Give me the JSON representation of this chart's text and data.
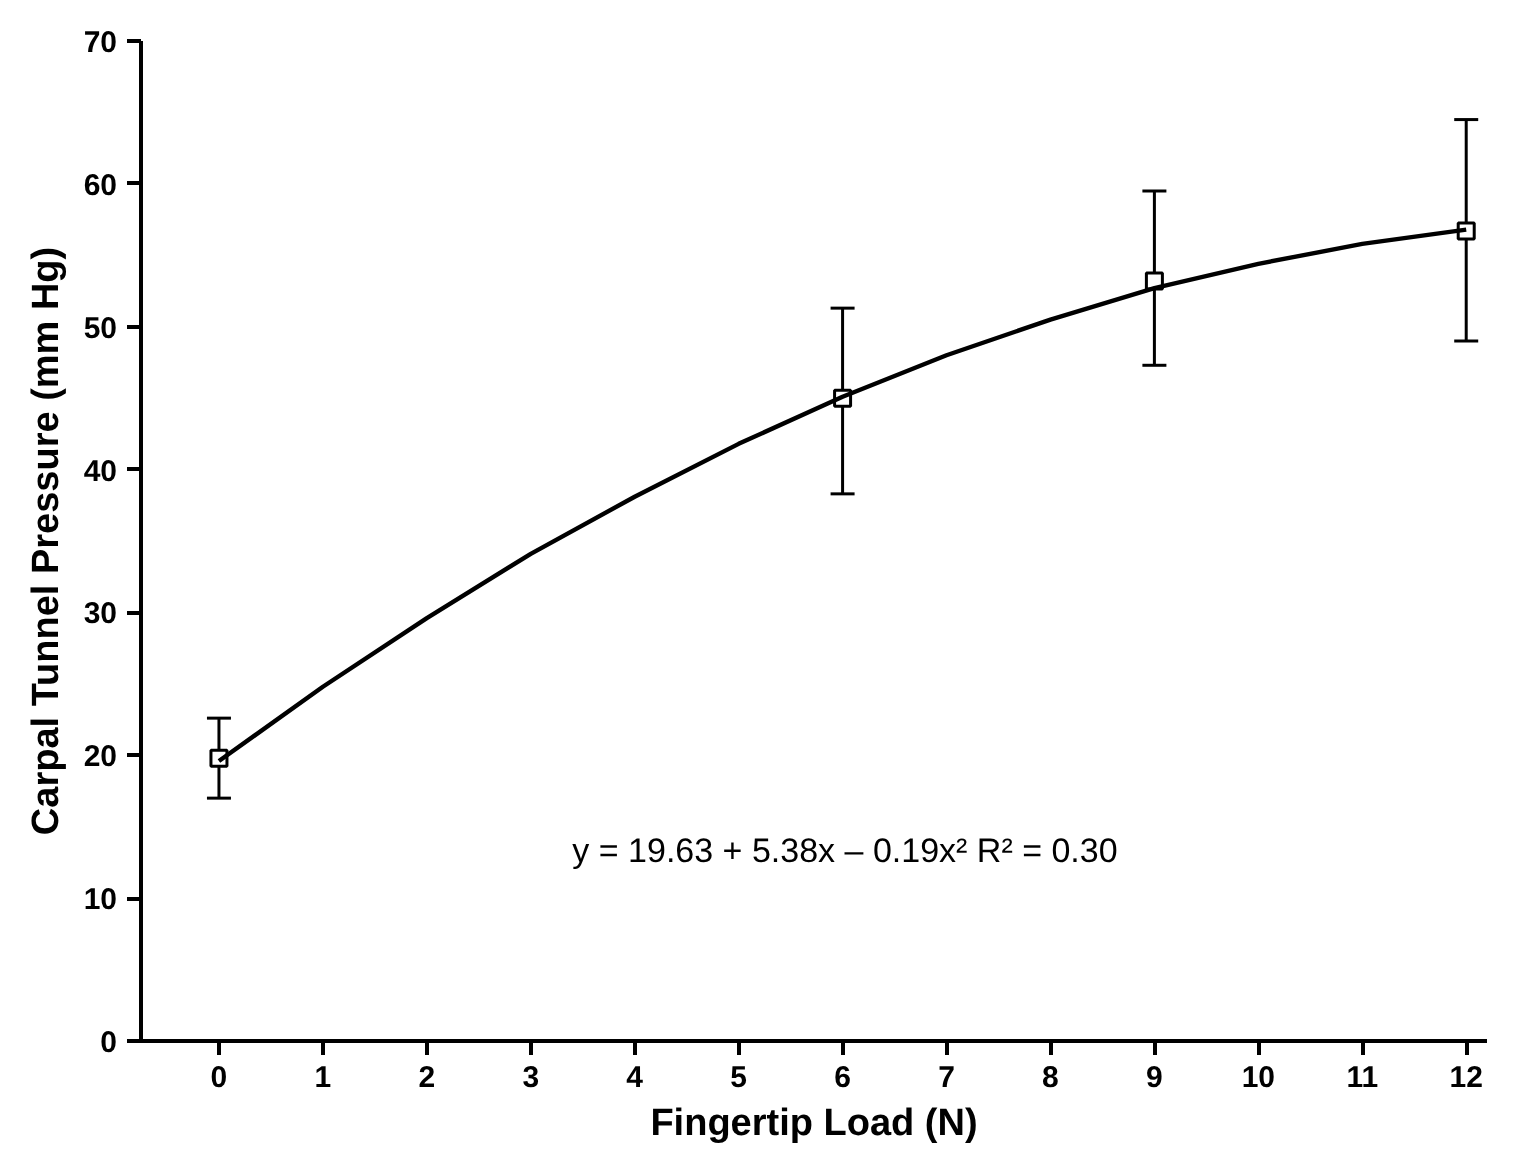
{
  "chart_data": {
    "type": "line",
    "xlabel": "Fingertip Load (N)",
    "ylabel": "Carpal Tunnel Pressure (mm Hg)",
    "xlim": [
      -0.75,
      12.2
    ],
    "ylim": [
      0,
      70
    ],
    "xticks": [
      0,
      1,
      2,
      3,
      4,
      5,
      6,
      7,
      8,
      9,
      10,
      11,
      12
    ],
    "yticks": [
      0,
      10,
      20,
      30,
      40,
      50,
      60,
      70
    ],
    "grid": false,
    "series": [
      {
        "type": "scatter",
        "marker": "square",
        "color": "#000000",
        "x": [
          0,
          6,
          9,
          12
        ],
        "values": [
          19.8,
          45,
          53.2,
          56.7
        ],
        "errors": [
          [
            17,
            22.6
          ],
          [
            38.3,
            51.3
          ],
          [
            47.3,
            59.5
          ],
          [
            49,
            64.5
          ]
        ]
      },
      {
        "color": "#000000",
        "x": [
          0,
          1,
          2,
          3,
          4,
          5,
          6,
          7,
          8,
          9,
          10,
          11,
          12
        ],
        "values": [
          19.6,
          24.8,
          29.6,
          34.1,
          38.1,
          41.8,
          45.1,
          48.0,
          50.5,
          52.7,
          54.4,
          55.8,
          56.8
        ]
      }
    ],
    "annotations": [
      "y = 19.63 + 5.38x – 0.19x²   R² = 0.30"
    ]
  }
}
